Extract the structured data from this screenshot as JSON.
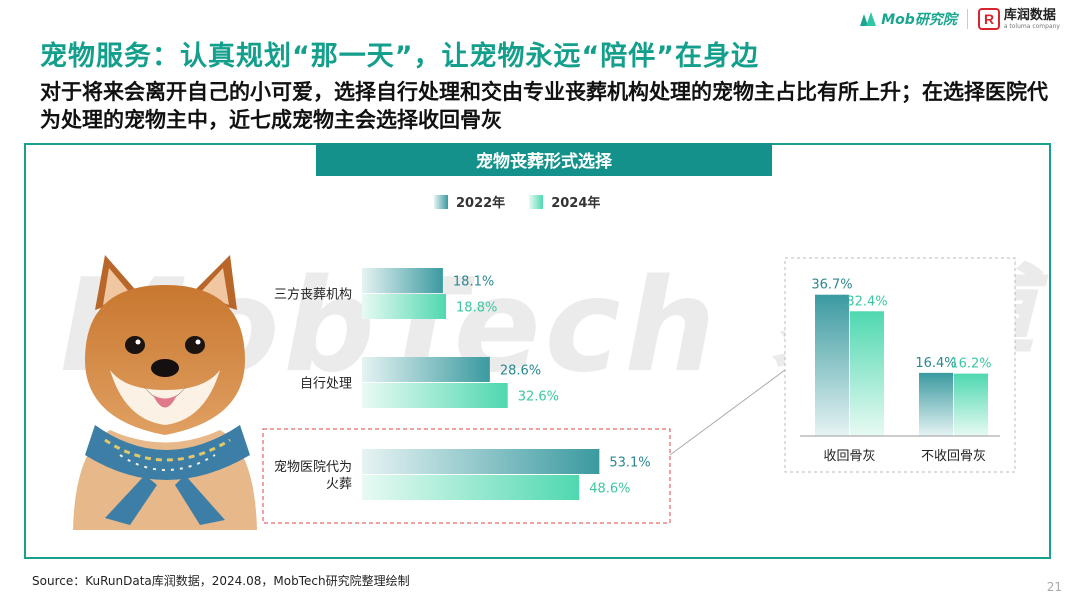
{
  "brand": {
    "mob": "Mob研究院",
    "kuran_cn": "库润数据",
    "kuran_en": "a toluma company"
  },
  "title": "宠物服务：认真规划“那一天”，让宠物永远“陪伴”在身边",
  "subtitle": "对于将来会离开自己的小可爱，选择自行处理和交由专业丧葬机构处理的宠物主占比有所上升；在选择医院代为处理的宠物主中，近七成宠物主会选择收回骨灰",
  "watermark": "MobTech 袤博",
  "colors": {
    "accent": "#14918a",
    "title": "#139f8c",
    "c2022_dark": "#3a9aa0",
    "c2024_dark": "#4fd8b0",
    "label2022": "#2b8790",
    "label2024": "#3cc7a3",
    "dashed": "#e04646"
  },
  "chart_data": [
    {
      "type": "bar",
      "orientation": "horizontal",
      "title": "宠物丧葬形式选择",
      "categories": [
        "三方丧葬机构",
        "自行处理",
        "宠物医院代为火葬"
      ],
      "category_labels": [
        [
          "三方丧葬机构"
        ],
        [
          "自行处理"
        ],
        [
          "宠物医院代为",
          "火葬"
        ]
      ],
      "series": [
        {
          "name": "2022年",
          "values": [
            18.1,
            28.6,
            53.1
          ],
          "labels": [
            "18.1%",
            "28.6%",
            "53.1%"
          ]
        },
        {
          "name": "2024年",
          "values": [
            18.8,
            32.6,
            48.6
          ],
          "labels": [
            "18.8%",
            "32.6%",
            "48.6%"
          ]
        }
      ],
      "xlim": [
        0,
        60
      ],
      "unit": "%",
      "highlight": "宠物医院代为火葬"
    },
    {
      "type": "bar",
      "orientation": "vertical",
      "title": "",
      "categories": [
        "收回骨灰",
        "不收回骨灰"
      ],
      "series": [
        {
          "name": "2022年",
          "values": [
            36.7,
            16.4
          ],
          "labels": [
            "36.7%",
            "16.4%"
          ]
        },
        {
          "name": "2024年",
          "values": [
            32.4,
            16.2
          ],
          "labels": [
            "32.4%",
            "16.2%"
          ]
        }
      ],
      "ylim": [
        0,
        40
      ],
      "unit": "%"
    }
  ],
  "legend": [
    "2022年",
    "2024年"
  ],
  "footer": "Source：KuRunData库润数据，2024.08，MobTech研究院整理绘制",
  "page_number": "21"
}
